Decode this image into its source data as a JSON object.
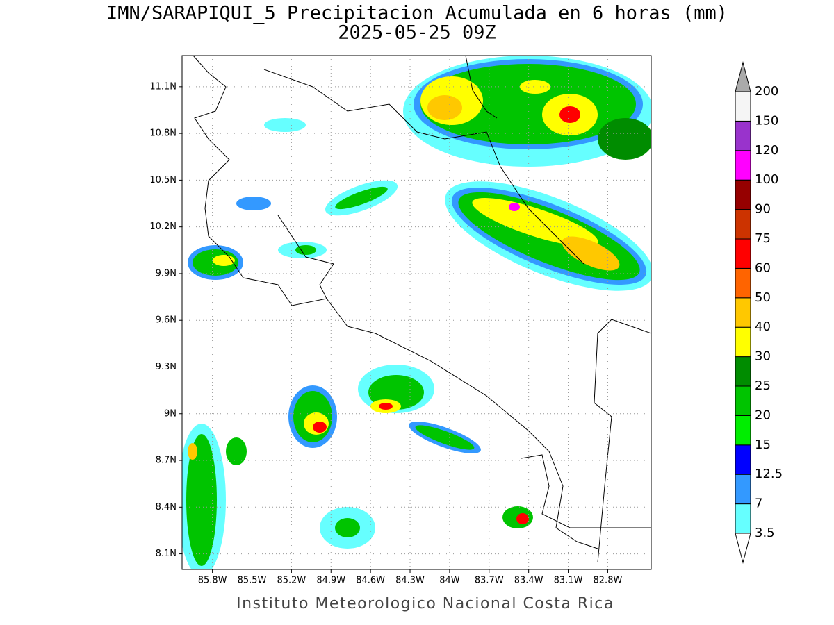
{
  "header": {
    "title": "IMN/SARAPIQUI_5 Precipitacion Acumulada en 6 horas (mm)",
    "subtitle": "2025-05-25 09Z"
  },
  "map": {
    "lon_range": [
      -86.03,
      -82.47
    ],
    "lat_range": [
      8.0,
      11.3
    ],
    "lon_ticks": [
      {
        "value": -85.8,
        "label": "85.8W"
      },
      {
        "value": -85.5,
        "label": "85.5W"
      },
      {
        "value": -85.2,
        "label": "85.2W"
      },
      {
        "value": -84.9,
        "label": "84.9W"
      },
      {
        "value": -84.6,
        "label": "84.6W"
      },
      {
        "value": -84.3,
        "label": "84.3W"
      },
      {
        "value": -84.0,
        "label": "84W"
      },
      {
        "value": -83.7,
        "label": "83.7W"
      },
      {
        "value": -83.4,
        "label": "83.4W"
      },
      {
        "value": -83.1,
        "label": "83.1W"
      },
      {
        "value": -82.8,
        "label": "82.8W"
      }
    ],
    "lat_ticks": [
      {
        "value": 8.1,
        "label": "8.1N"
      },
      {
        "value": 8.4,
        "label": "8.4N"
      },
      {
        "value": 8.7,
        "label": "8.7N"
      },
      {
        "value": 9.0,
        "label": "9N"
      },
      {
        "value": 9.3,
        "label": "9.3N"
      },
      {
        "value": 9.6,
        "label": "9.6N"
      },
      {
        "value": 9.9,
        "label": "9.9N"
      },
      {
        "value": 10.2,
        "label": "10.2N"
      },
      {
        "value": 10.5,
        "label": "10.5N"
      },
      {
        "value": 10.8,
        "label": "10.8N"
      },
      {
        "value": 11.1,
        "label": "11.1N"
      }
    ]
  },
  "colorbar": {
    "levels": [
      3.5,
      7,
      12.5,
      15,
      20,
      25,
      30,
      40,
      50,
      60,
      75,
      90,
      100,
      120,
      150,
      200
    ],
    "colors": [
      "#66ffff",
      "#3399ff",
      "#0000ff",
      "#00ee00",
      "#00c400",
      "#008c00",
      "#ffff00",
      "#ffc800",
      "#ff6400",
      "#ff0000",
      "#cc3300",
      "#960000",
      "#ff00ff",
      "#9933cc",
      "#f5f5f5"
    ]
  },
  "footer": "Instituto Meteorologico Nacional Costa Rica"
}
